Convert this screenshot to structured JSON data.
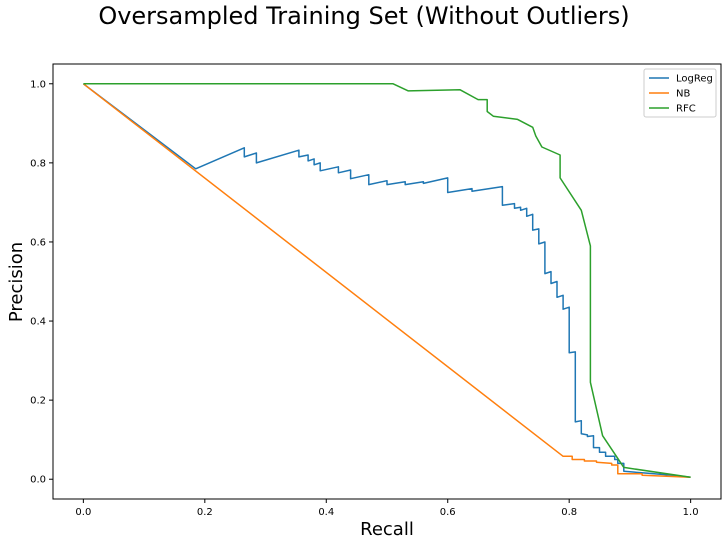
{
  "chart_data": {
    "type": "line",
    "title": "Oversampled Training Set (Without Outliers)",
    "xlabel": "Recall",
    "ylabel": "Precision",
    "xlim": [
      -0.05,
      1.05
    ],
    "ylim": [
      -0.05,
      1.05
    ],
    "xticks": [
      "0.0",
      "0.2",
      "0.4",
      "0.6",
      "0.8",
      "1.0"
    ],
    "yticks": [
      "0.0",
      "0.2",
      "0.4",
      "0.6",
      "0.8",
      "1.0"
    ],
    "grid": false,
    "legend_position": "top-right",
    "series": [
      {
        "name": "LogReg",
        "color": "#1f77b4",
        "points": [
          [
            0.0,
            1.0
          ],
          [
            0.185,
            0.785
          ],
          [
            0.265,
            0.838
          ],
          [
            0.265,
            0.815
          ],
          [
            0.285,
            0.825
          ],
          [
            0.285,
            0.8
          ],
          [
            0.355,
            0.832
          ],
          [
            0.355,
            0.815
          ],
          [
            0.37,
            0.82
          ],
          [
            0.37,
            0.805
          ],
          [
            0.38,
            0.81
          ],
          [
            0.38,
            0.795
          ],
          [
            0.39,
            0.8
          ],
          [
            0.39,
            0.78
          ],
          [
            0.42,
            0.79
          ],
          [
            0.42,
            0.775
          ],
          [
            0.44,
            0.782
          ],
          [
            0.44,
            0.76
          ],
          [
            0.47,
            0.77
          ],
          [
            0.47,
            0.745
          ],
          [
            0.5,
            0.755
          ],
          [
            0.5,
            0.745
          ],
          [
            0.53,
            0.752
          ],
          [
            0.53,
            0.745
          ],
          [
            0.56,
            0.752
          ],
          [
            0.56,
            0.748
          ],
          [
            0.6,
            0.762
          ],
          [
            0.6,
            0.725
          ],
          [
            0.64,
            0.735
          ],
          [
            0.64,
            0.728
          ],
          [
            0.69,
            0.74
          ],
          [
            0.69,
            0.693
          ],
          [
            0.71,
            0.697
          ],
          [
            0.71,
            0.685
          ],
          [
            0.72,
            0.688
          ],
          [
            0.72,
            0.68
          ],
          [
            0.73,
            0.685
          ],
          [
            0.73,
            0.665
          ],
          [
            0.74,
            0.67
          ],
          [
            0.74,
            0.63
          ],
          [
            0.75,
            0.633
          ],
          [
            0.75,
            0.595
          ],
          [
            0.76,
            0.6
          ],
          [
            0.76,
            0.52
          ],
          [
            0.77,
            0.525
          ],
          [
            0.77,
            0.495
          ],
          [
            0.78,
            0.5
          ],
          [
            0.78,
            0.46
          ],
          [
            0.79,
            0.465
          ],
          [
            0.79,
            0.43
          ],
          [
            0.8,
            0.435
          ],
          [
            0.8,
            0.32
          ],
          [
            0.81,
            0.322
          ],
          [
            0.81,
            0.145
          ],
          [
            0.82,
            0.148
          ],
          [
            0.82,
            0.115
          ],
          [
            0.83,
            0.112
          ],
          [
            0.83,
            0.108
          ],
          [
            0.84,
            0.11
          ],
          [
            0.84,
            0.08
          ],
          [
            0.85,
            0.08
          ],
          [
            0.85,
            0.068
          ],
          [
            0.86,
            0.068
          ],
          [
            0.86,
            0.058
          ],
          [
            0.875,
            0.058
          ],
          [
            0.875,
            0.05
          ],
          [
            0.88,
            0.05
          ],
          [
            0.88,
            0.04
          ],
          [
            0.89,
            0.04
          ],
          [
            0.89,
            0.02
          ],
          [
            0.93,
            0.015
          ],
          [
            0.97,
            0.01
          ],
          [
            1.0,
            0.005
          ]
        ]
      },
      {
        "name": "NB",
        "color": "#ff7f0e",
        "points": [
          [
            0.0,
            1.0
          ],
          [
            0.79,
            0.058
          ],
          [
            0.805,
            0.058
          ],
          [
            0.805,
            0.05
          ],
          [
            0.825,
            0.05
          ],
          [
            0.825,
            0.046
          ],
          [
            0.845,
            0.046
          ],
          [
            0.845,
            0.043
          ],
          [
            0.87,
            0.04
          ],
          [
            0.87,
            0.036
          ],
          [
            0.88,
            0.036
          ],
          [
            0.88,
            0.014
          ],
          [
            0.92,
            0.014
          ],
          [
            0.92,
            0.01
          ],
          [
            1.0,
            0.005
          ]
        ]
      },
      {
        "name": "RFC",
        "color": "#2ca02c",
        "points": [
          [
            0.0,
            1.0
          ],
          [
            0.51,
            1.0
          ],
          [
            0.535,
            0.982
          ],
          [
            0.62,
            0.985
          ],
          [
            0.65,
            0.96
          ],
          [
            0.665,
            0.96
          ],
          [
            0.665,
            0.93
          ],
          [
            0.675,
            0.918
          ],
          [
            0.715,
            0.91
          ],
          [
            0.74,
            0.89
          ],
          [
            0.745,
            0.868
          ],
          [
            0.755,
            0.84
          ],
          [
            0.785,
            0.82
          ],
          [
            0.785,
            0.762
          ],
          [
            0.82,
            0.68
          ],
          [
            0.835,
            0.59
          ],
          [
            0.835,
            0.245
          ],
          [
            0.855,
            0.11
          ],
          [
            0.89,
            0.03
          ],
          [
            1.0,
            0.005
          ]
        ]
      }
    ]
  }
}
